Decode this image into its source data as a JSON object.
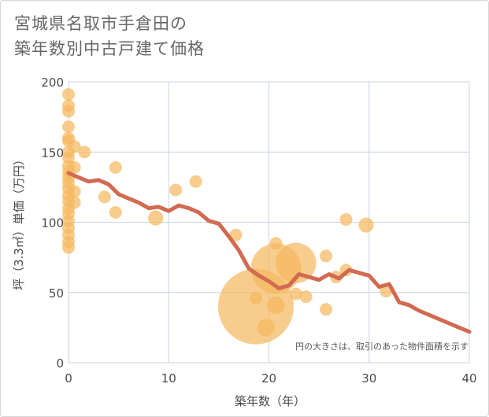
{
  "title_lines": [
    "宮城県名取市手倉田の",
    "築年数別中古戸建て価格"
  ],
  "chart_data": {
    "type": "scatter",
    "title": "宮城県名取市手倉田の築年数別中古戸建て価格",
    "xlabel": "築年数（年）",
    "ylabel": "坪（3.3㎡）単価（万円）",
    "xlim": [
      0,
      40
    ],
    "ylim": [
      0,
      200
    ],
    "xticks": [
      0,
      10,
      20,
      30,
      40
    ],
    "yticks": [
      0,
      50,
      100,
      150,
      200
    ],
    "grid": true,
    "note": "円の大きさは、取引のあった物件面積を示す",
    "colors": {
      "bubble": "#f5b960",
      "line": "#d26a52",
      "grid": "#c9d3e0"
    },
    "series": [
      {
        "type": "scatter",
        "points": [
          {
            "x": 0,
            "y": 191,
            "size": 1
          },
          {
            "x": 0,
            "y": 183,
            "size": 1
          },
          {
            "x": 0,
            "y": 179,
            "size": 1
          },
          {
            "x": 0,
            "y": 168,
            "size": 1
          },
          {
            "x": 0,
            "y": 160,
            "size": 1
          },
          {
            "x": 0,
            "y": 158,
            "size": 1
          },
          {
            "x": 0,
            "y": 150,
            "size": 1
          },
          {
            "x": 0,
            "y": 146,
            "size": 1
          },
          {
            "x": 0,
            "y": 140,
            "size": 1
          },
          {
            "x": 0,
            "y": 136,
            "size": 1
          },
          {
            "x": 0,
            "y": 132,
            "size": 1
          },
          {
            "x": 0,
            "y": 128,
            "size": 1
          },
          {
            "x": 0,
            "y": 124,
            "size": 1
          },
          {
            "x": 0,
            "y": 119,
            "size": 1
          },
          {
            "x": 0,
            "y": 115,
            "size": 1
          },
          {
            "x": 0,
            "y": 110,
            "size": 1
          },
          {
            "x": 0,
            "y": 106,
            "size": 1
          },
          {
            "x": 0,
            "y": 101,
            "size": 1
          },
          {
            "x": 0,
            "y": 96,
            "size": 1
          },
          {
            "x": 0,
            "y": 91,
            "size": 1
          },
          {
            "x": 0,
            "y": 86,
            "size": 1
          },
          {
            "x": 0,
            "y": 82,
            "size": 1
          },
          {
            "x": 0.6,
            "y": 154,
            "size": 1
          },
          {
            "x": 0.6,
            "y": 139,
            "size": 1
          },
          {
            "x": 0.6,
            "y": 122,
            "size": 1
          },
          {
            "x": 0.6,
            "y": 114,
            "size": 1
          },
          {
            "x": 1.6,
            "y": 150,
            "size": 1
          },
          {
            "x": 3.6,
            "y": 118,
            "size": 1
          },
          {
            "x": 4.7,
            "y": 139,
            "size": 1
          },
          {
            "x": 4.7,
            "y": 107,
            "size": 1
          },
          {
            "x": 8.7,
            "y": 103,
            "size": 1.2
          },
          {
            "x": 10.7,
            "y": 123,
            "size": 1
          },
          {
            "x": 12.7,
            "y": 129,
            "size": 1
          },
          {
            "x": 16.7,
            "y": 91,
            "size": 1
          },
          {
            "x": 18.7,
            "y": 40,
            "size": 6
          },
          {
            "x": 18.7,
            "y": 46,
            "size": 1
          },
          {
            "x": 19.7,
            "y": 25,
            "size": 1.4
          },
          {
            "x": 20.7,
            "y": 85,
            "size": 1
          },
          {
            "x": 20.7,
            "y": 67,
            "size": 4
          },
          {
            "x": 20.7,
            "y": 41,
            "size": 1.4
          },
          {
            "x": 22.7,
            "y": 71,
            "size": 3.2
          },
          {
            "x": 22.7,
            "y": 49,
            "size": 1
          },
          {
            "x": 23.7,
            "y": 47,
            "size": 1
          },
          {
            "x": 25.7,
            "y": 76,
            "size": 1
          },
          {
            "x": 25.7,
            "y": 38,
            "size": 1
          },
          {
            "x": 26.7,
            "y": 61,
            "size": 1
          },
          {
            "x": 27.7,
            "y": 102,
            "size": 1
          },
          {
            "x": 27.7,
            "y": 66,
            "size": 1
          },
          {
            "x": 29.7,
            "y": 98,
            "size": 1.2
          },
          {
            "x": 31.7,
            "y": 51,
            "size": 1
          }
        ]
      },
      {
        "type": "line",
        "points": [
          [
            0,
            135
          ],
          [
            1,
            132
          ],
          [
            2,
            129
          ],
          [
            3,
            130
          ],
          [
            4,
            127
          ],
          [
            5,
            120
          ],
          [
            6,
            117
          ],
          [
            7,
            114
          ],
          [
            8,
            110
          ],
          [
            9,
            111
          ],
          [
            10,
            108
          ],
          [
            11,
            112
          ],
          [
            12,
            110
          ],
          [
            13,
            107
          ],
          [
            14,
            101
          ],
          [
            15,
            99
          ],
          [
            16,
            90
          ],
          [
            17,
            80
          ],
          [
            18,
            67
          ],
          [
            19,
            62
          ],
          [
            20,
            58
          ],
          [
            21,
            53
          ],
          [
            22,
            55
          ],
          [
            23,
            63
          ],
          [
            24,
            61
          ],
          [
            25,
            59
          ],
          [
            26,
            63
          ],
          [
            27,
            60
          ],
          [
            28,
            66
          ],
          [
            29,
            64
          ],
          [
            30,
            62
          ],
          [
            31,
            54
          ],
          [
            32,
            56
          ],
          [
            33,
            43
          ],
          [
            34,
            41
          ],
          [
            35,
            37
          ],
          [
            36,
            34
          ],
          [
            37,
            31
          ],
          [
            38,
            28
          ],
          [
            39,
            25
          ],
          [
            40,
            22
          ]
        ]
      }
    ]
  }
}
